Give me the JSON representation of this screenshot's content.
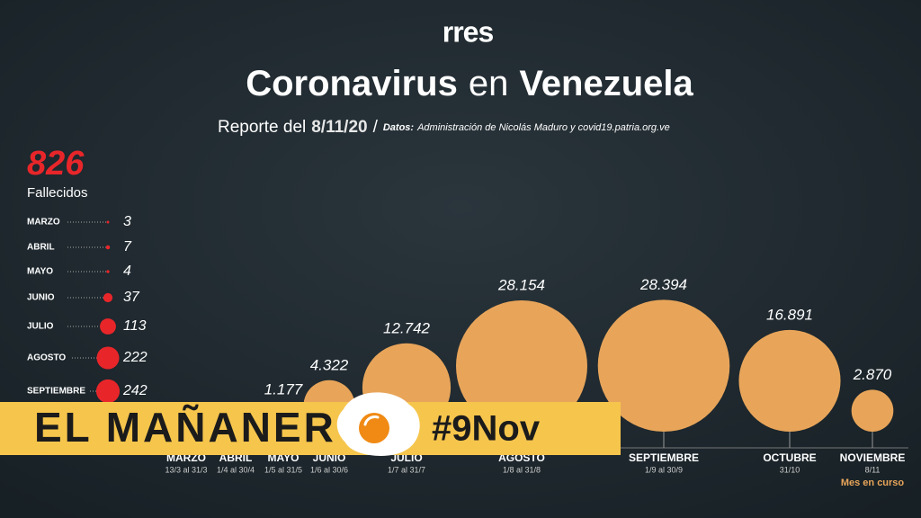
{
  "header": {
    "brand": "rres",
    "title": [
      "Coronavirus",
      "en",
      "Venezuela"
    ],
    "report_label": "Reporte del",
    "report_date": "8/11/20",
    "separator": "/",
    "source_label": "Datos:",
    "source": "Administración de Nicolás Maduro y covid19.patria.org.ve"
  },
  "banner": {
    "title": "EL MAÑANER",
    "tag": "#9Nov"
  },
  "chart_data": [
    {
      "type": "bubble",
      "categories": [
        "MARZO",
        "ABRIL",
        "MAYO",
        "JUNIO",
        "JULIO",
        "AGOSTO",
        "SEPTIEMBRE",
        "OCTUBRE",
        "NOVIEMBRE"
      ],
      "periods": [
        "13/3 al 31/3",
        "1/4 al 30/4",
        "1/5 al 31/5",
        "1/6 al 30/6",
        "1/7 al 31/7",
        "1/8 al 31/8",
        "1/9 al 30/9",
        "31/10",
        "8/11"
      ],
      "values": [
        null,
        null,
        1177,
        4322,
        12742,
        28154,
        28394,
        16891,
        2870
      ],
      "value_labels": [
        null,
        null,
        "1.177",
        "4.322",
        "12.742",
        "28.154",
        "28.394",
        "16.891",
        "2.870"
      ],
      "color": "#e8a55a",
      "note": "Mes en curso"
    },
    {
      "type": "dot-list",
      "total": 826,
      "total_label": "Fallecidos",
      "categories": [
        "MARZO",
        "ABRIL",
        "MAYO",
        "JUNIO",
        "JULIO",
        "AGOSTO",
        "SEPTIEMBRE"
      ],
      "values": [
        3,
        7,
        4,
        37,
        113,
        222,
        242
      ],
      "color": "#e8262a"
    }
  ]
}
